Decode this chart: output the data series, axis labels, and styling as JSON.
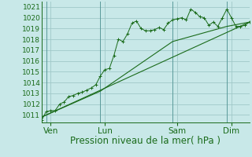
{
  "background_color": "#c8e8e8",
  "grid_color": "#a0c8c8",
  "line_color": "#1a6b1a",
  "marker_color": "#1a6b1a",
  "xlabel": "Pression niveau de la mer( hPa )",
  "ylim": [
    1010.3,
    1021.5
  ],
  "yticks": [
    1011,
    1012,
    1013,
    1014,
    1015,
    1016,
    1017,
    1018,
    1019,
    1020,
    1021
  ],
  "xtick_labels": [
    "Ven",
    "Lun",
    "Sam",
    "Dim"
  ],
  "xtick_positions": [
    12,
    84,
    180,
    252
  ],
  "xlim": [
    0,
    276
  ],
  "vline_positions": [
    6,
    78,
    174,
    246
  ],
  "series1_x": [
    0,
    6,
    12,
    18,
    24,
    30,
    36,
    42,
    48,
    54,
    60,
    66,
    72,
    78,
    84,
    90,
    96,
    102,
    108,
    114,
    120,
    126,
    132,
    138,
    144,
    150,
    156,
    162,
    168,
    174,
    180,
    186,
    192,
    198,
    204,
    210,
    216,
    222,
    228,
    234,
    240,
    246,
    252,
    258,
    264,
    270,
    276
  ],
  "series1_y": [
    1010.5,
    1011.3,
    1011.4,
    1011.4,
    1012.0,
    1012.2,
    1012.7,
    1012.8,
    1013.0,
    1013.1,
    1013.3,
    1013.5,
    1013.8,
    1014.6,
    1015.2,
    1015.3,
    1016.5,
    1018.0,
    1017.8,
    1018.5,
    1019.5,
    1019.7,
    1019.0,
    1018.8,
    1018.8,
    1018.9,
    1019.1,
    1018.9,
    1019.5,
    1019.8,
    1019.9,
    1020.0,
    1019.8,
    1020.8,
    1020.5,
    1020.1,
    1020.0,
    1019.3,
    1019.6,
    1019.2,
    1020.0,
    1020.8,
    1020.0,
    1019.2,
    1019.2,
    1019.3,
    1019.6
  ],
  "series2_x": [
    0,
    78,
    174,
    246,
    276
  ],
  "series2_y": [
    1010.8,
    1013.2,
    1017.8,
    1019.2,
    1019.6
  ],
  "series3_x": [
    0,
    276
  ],
  "series3_y": [
    1010.8,
    1019.6
  ],
  "xlabel_fontsize": 8.5,
  "ytick_fontsize": 6.5,
  "xtick_fontsize": 7.5
}
